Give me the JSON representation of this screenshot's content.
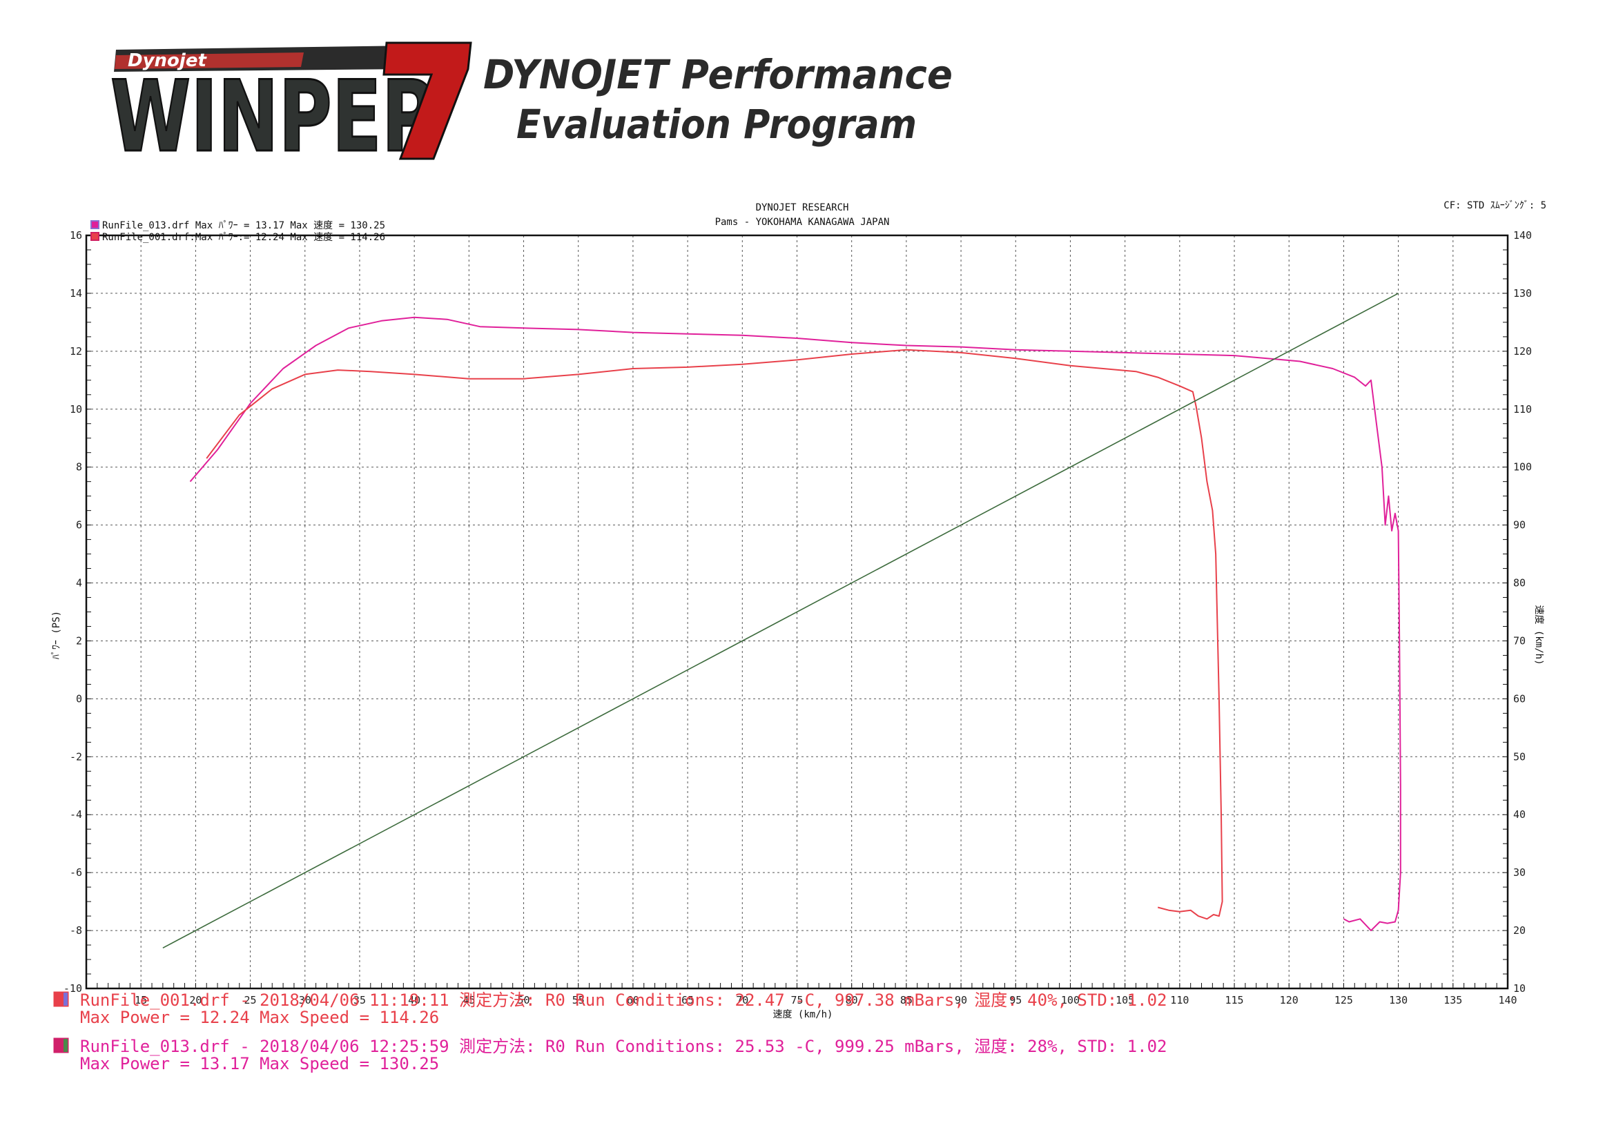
{
  "logo": {
    "brand": "Dynojet",
    "product": "WINPEP",
    "version": "7",
    "tagline_line1": "DYNOJET Performance",
    "tagline_line2": "Evaluation Program"
  },
  "header": {
    "org": "DYNOJET  RESEARCH",
    "location": "Pams - YOKOHAMA KANAGAWA JAPAN",
    "cf": "CF: STD  ｽﾑｰｼﾞﾝｸﾞ: 5"
  },
  "legend_top": [
    {
      "text": "RunFile_013.drf Max ﾊﾟﾜｰ = 13.17     Max 速度 = 130.25",
      "color": "#e0209a",
      "swatch_border": "#8c6fd0"
    },
    {
      "text": "RunFile_001.drf:Max ﾊﾟﾜｰ:= 12.24     Max 速度 = 114.26",
      "color": "#e8404a",
      "swatch_border": "#d02060"
    }
  ],
  "footer": [
    {
      "line1": "RunFile_001.drf - 2018/04/06 11:19:11  測定方法: R0  Run Conditions: 22.47 -C, 997.38 mBars,  湿度: 40%, STD: 1.02",
      "line2": "Max Power = 12.24  Max Speed = 114.26",
      "color": "#e8404a",
      "swatch_fill": "#e8404a",
      "swatch_mark": "#7a70d8"
    },
    {
      "line1": "RunFile_013.drf - 2018/04/06 12:25:59  測定方法: R0  Run Conditions: 25.53 -C, 999.25 mBars,  湿度: 28%, STD: 1.02",
      "line2": "Max Power = 13.17  Max Speed = 130.25",
      "color": "#e0209a",
      "swatch_fill": "#d0206a",
      "swatch_mark": "#4a8a4a"
    }
  ],
  "colors": {
    "run013": "#e0209a",
    "run001": "#e8404a",
    "speed_line": "#3d6b3d",
    "grid": "#555555"
  },
  "chart_data": {
    "type": "line",
    "xlabel": "速度 (km/h)",
    "ylabel": "ﾊﾟﾜｰ (PS)",
    "y2label": "速度 (km/h)",
    "xlim": [
      10,
      140
    ],
    "ylim": [
      -10,
      16
    ],
    "y2lim": [
      10,
      140
    ],
    "x_ticks": [
      15,
      20,
      25,
      30,
      35,
      40,
      45,
      50,
      55,
      60,
      65,
      70,
      75,
      80,
      85,
      90,
      95,
      100,
      105,
      110,
      115,
      120,
      125,
      130,
      135,
      140
    ],
    "y_ticks": [
      -10,
      -8,
      -6,
      -4,
      -2,
      0,
      2,
      4,
      6,
      8,
      10,
      12,
      14,
      16
    ],
    "y2_ticks": [
      10,
      20,
      30,
      40,
      50,
      60,
      70,
      80,
      90,
      100,
      110,
      120,
      130,
      140
    ],
    "grid": true,
    "series": [
      {
        "name": "RunFile_013.drf",
        "axis": "left",
        "x": [
          19.5,
          22,
          25,
          28,
          31,
          34,
          37,
          40,
          43,
          46,
          50,
          55,
          60,
          65,
          70,
          75,
          80,
          85,
          90,
          95,
          100,
          105,
          110,
          115,
          118,
          121,
          124,
          126,
          127,
          127.5,
          128,
          128.5,
          128.8,
          129.1,
          129.4,
          129.7,
          130,
          130.1,
          130.2,
          130.2,
          130,
          129.7,
          129,
          128.3,
          127.5,
          126.5,
          125.5,
          125
        ],
        "y": [
          7.5,
          8.6,
          10.2,
          11.4,
          12.2,
          12.8,
          13.05,
          13.17,
          13.1,
          12.85,
          12.8,
          12.75,
          12.65,
          12.6,
          12.55,
          12.45,
          12.3,
          12.2,
          12.15,
          12.05,
          12.0,
          11.95,
          11.9,
          11.85,
          11.75,
          11.65,
          11.4,
          11.1,
          10.8,
          11.0,
          9.5,
          8.0,
          6.0,
          7.0,
          5.8,
          6.4,
          5.8,
          2.0,
          -3.0,
          -6.0,
          -7.3,
          -7.7,
          -7.75,
          -7.7,
          -8.0,
          -7.6,
          -7.7,
          -7.6
        ]
      },
      {
        "name": "RunFile_001.drf",
        "axis": "left",
        "x": [
          21,
          24,
          27,
          30,
          33,
          36,
          40,
          45,
          50,
          55,
          60,
          65,
          70,
          75,
          80,
          85,
          90,
          95,
          100,
          103,
          106,
          108,
          110,
          111.2,
          111.5,
          112,
          112.5,
          113,
          113.3,
          113.6,
          113.8,
          113.9,
          113.6,
          113.1,
          112.5,
          111.7,
          111,
          110,
          109,
          108
        ],
        "y": [
          8.3,
          9.8,
          10.7,
          11.2,
          11.35,
          11.3,
          11.2,
          11.05,
          11.05,
          11.2,
          11.4,
          11.45,
          11.55,
          11.7,
          11.9,
          12.05,
          11.95,
          11.75,
          11.5,
          11.4,
          11.3,
          11.1,
          10.8,
          10.6,
          10.1,
          9.0,
          7.5,
          6.5,
          5.0,
          0.0,
          -4.0,
          -7.0,
          -7.5,
          -7.45,
          -7.6,
          -7.5,
          -7.3,
          -7.35,
          -7.3,
          -7.2
        ]
      },
      {
        "name": "",
        "axis": "right",
        "x": [
          17,
          130
        ],
        "y": [
          17,
          130
        ]
      }
    ]
  }
}
